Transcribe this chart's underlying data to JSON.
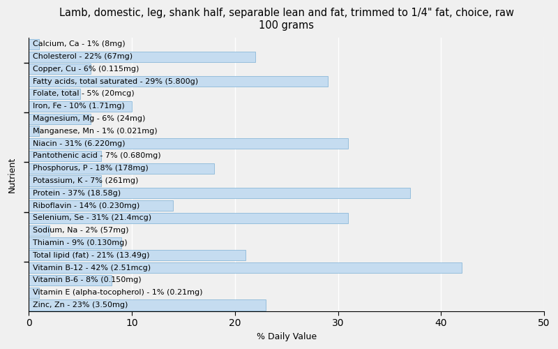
{
  "title": "Lamb, domestic, leg, shank half, separable lean and fat, trimmed to 1/4\" fat, choice, raw\n100 grams",
  "xlabel": "% Daily Value",
  "ylabel": "Nutrient",
  "nutrients": [
    {
      "label": "Calcium, Ca - 1% (8mg)",
      "value": 1
    },
    {
      "label": "Cholesterol - 22% (67mg)",
      "value": 22
    },
    {
      "label": "Copper, Cu - 6% (0.115mg)",
      "value": 6
    },
    {
      "label": "Fatty acids, total saturated - 29% (5.800g)",
      "value": 29
    },
    {
      "label": "Folate, total - 5% (20mcg)",
      "value": 5
    },
    {
      "label": "Iron, Fe - 10% (1.71mg)",
      "value": 10
    },
    {
      "label": "Magnesium, Mg - 6% (24mg)",
      "value": 6
    },
    {
      "label": "Manganese, Mn - 1% (0.021mg)",
      "value": 1
    },
    {
      "label": "Niacin - 31% (6.220mg)",
      "value": 31
    },
    {
      "label": "Pantothenic acid - 7% (0.680mg)",
      "value": 7
    },
    {
      "label": "Phosphorus, P - 18% (178mg)",
      "value": 18
    },
    {
      "label": "Potassium, K - 7% (261mg)",
      "value": 7
    },
    {
      "label": "Protein - 37% (18.58g)",
      "value": 37
    },
    {
      "label": "Riboflavin - 14% (0.230mg)",
      "value": 14
    },
    {
      "label": "Selenium, Se - 31% (21.4mcg)",
      "value": 31
    },
    {
      "label": "Sodium, Na - 2% (57mg)",
      "value": 2
    },
    {
      "label": "Thiamin - 9% (0.130mg)",
      "value": 9
    },
    {
      "label": "Total lipid (fat) - 21% (13.49g)",
      "value": 21
    },
    {
      "label": "Vitamin B-12 - 42% (2.51mcg)",
      "value": 42
    },
    {
      "label": "Vitamin B-6 - 8% (0.150mg)",
      "value": 8
    },
    {
      "label": "Vitamin E (alpha-tocopherol) - 1% (0.21mg)",
      "value": 1
    },
    {
      "label": "Zinc, Zn - 23% (3.50mg)",
      "value": 23
    }
  ],
  "bar_color": "#c5dcf0",
  "bar_edge_color": "#7aafd4",
  "background_color": "#f0f0f0",
  "plot_bg_color": "#f0f0f0",
  "xlim": [
    0,
    50
  ],
  "xticks": [
    0,
    10,
    20,
    30,
    40,
    50
  ],
  "title_fontsize": 10.5,
  "label_fontsize": 8,
  "axis_label_fontsize": 9,
  "ytick_positions": [
    3.5,
    7.5,
    11.5,
    15.5,
    19.5
  ]
}
